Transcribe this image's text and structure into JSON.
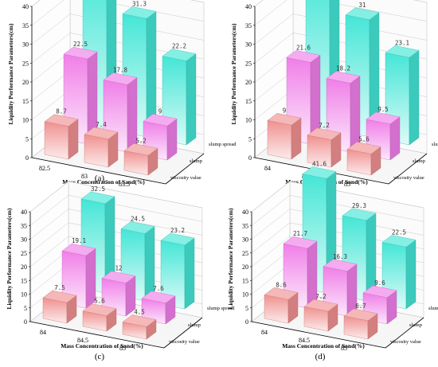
{
  "colors": {
    "slump_spread": "#44e6d6",
    "slump": "#f07ee8",
    "viscosity": "#f09090",
    "grid": "#c8c8c8"
  },
  "series_order": [
    "slump spread",
    "slump",
    "viscosity value"
  ],
  "chart_data": [
    {
      "type": "bar",
      "caption": "(a)",
      "categories": [
        "82.5",
        "83",
        "83.5"
      ],
      "series": [
        {
          "name": "slump spread",
          "values": [
            40.2,
            31.3,
            22.2
          ]
        },
        {
          "name": "slump",
          "values": [
            22.5,
            17.8,
            9
          ]
        },
        {
          "name": "viscosity value",
          "values": [
            8.7,
            7.4,
            5.2
          ]
        }
      ],
      "value_labels": [
        [
          "40.2",
          "31.3",
          "22.2"
        ],
        [
          "22.5",
          "17.8",
          "9"
        ],
        [
          "8.7",
          "7.4",
          "5.2"
        ]
      ],
      "xlabel": "Mass Concentration of Sand(%)",
      "ylabel": "Liquidity Performance Parameters(cm)",
      "yticks": [
        0,
        5,
        10,
        15,
        20,
        25,
        30,
        35,
        40
      ],
      "ylim": [
        0,
        40
      ]
    },
    {
      "type": "bar",
      "caption": "(b)",
      "categories": [
        "84",
        "84.5",
        "85"
      ],
      "series": [
        {
          "name": "slump spread",
          "values": [
            40,
            31,
            23.1
          ]
        },
        {
          "name": "slump",
          "values": [
            21.6,
            18.2,
            9.5
          ]
        },
        {
          "name": "viscosity value",
          "values": [
            9,
            7.2,
            5.6
          ]
        }
      ],
      "value_labels": [
        [
          "40",
          "31",
          "23.1"
        ],
        [
          "21.6",
          "18.2",
          "9.5"
        ],
        [
          "9",
          "7.2",
          "5.6"
        ]
      ],
      "xlabel": "Mass Concentration of Sand(%)",
      "ylabel": "Liquidity Performance Parameters(cm)",
      "yticks": [
        0,
        5,
        10,
        15,
        20,
        25,
        30,
        35,
        40
      ],
      "ylim": [
        0,
        40
      ]
    },
    {
      "type": "bar",
      "caption": "(c)",
      "categories": [
        "84",
        "84.5",
        "85"
      ],
      "series": [
        {
          "name": "slump spread",
          "values": [
            32.5,
            24.5,
            23.2
          ]
        },
        {
          "name": "slump",
          "values": [
            19.1,
            12,
            7.6
          ]
        },
        {
          "name": "viscosity value",
          "values": [
            7.5,
            5.6,
            4.5
          ]
        }
      ],
      "value_labels": [
        [
          "32.5",
          "24.5",
          "23.2"
        ],
        [
          "19.1",
          "12",
          "7.6"
        ],
        [
          "7.5",
          "5.6",
          "4.5"
        ]
      ],
      "xlabel": "Mass Concentration of Sand(%)",
      "ylabel": "Liquidity Performance Parameters(cm)",
      "yticks": [
        0,
        5,
        10,
        15,
        20,
        25,
        30,
        35,
        40
      ],
      "ylim": [
        0,
        40
      ]
    },
    {
      "type": "bar",
      "caption": "(d)",
      "categories": [
        "84",
        "84.5",
        "85"
      ],
      "series": [
        {
          "name": "slump spread",
          "values": [
            41.6,
            29.3,
            22.5
          ]
        },
        {
          "name": "slump",
          "values": [
            21.7,
            16.3,
            9.6
          ]
        },
        {
          "name": "viscosity value",
          "values": [
            8.6,
            7.2,
            6.7
          ]
        }
      ],
      "value_labels": [
        [
          "41.6",
          "29.3",
          "22.5"
        ],
        [
          "21.7",
          "16.3",
          "9.6"
        ],
        [
          "8.6",
          "7.2",
          "6.7"
        ]
      ],
      "xlabel": "Mass Concentration of Sand(%)",
      "ylabel": "Liquidity Performance Parameters(cm)",
      "yticks": [
        0,
        5,
        10,
        15,
        20,
        25,
        30,
        35,
        40
      ],
      "ylim": [
        0,
        40
      ]
    }
  ]
}
